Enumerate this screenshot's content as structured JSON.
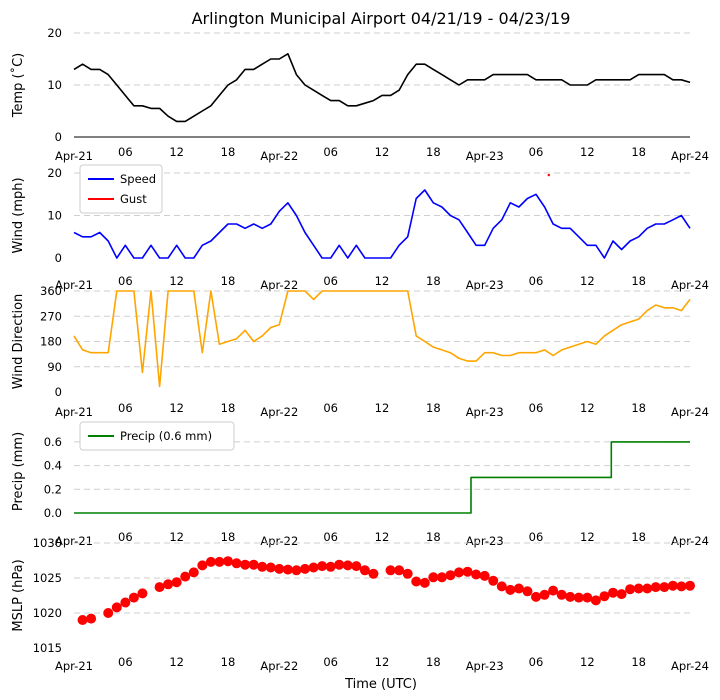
{
  "chart_data": {
    "title": "Arlington Municipal Airport 04/21/19 - 04/23/19",
    "xlabel": "Time (UTC)",
    "x_tick_labels": [
      "Apr-21",
      "06",
      "12",
      "18",
      "Apr-22",
      "06",
      "12",
      "18",
      "Apr-23",
      "06",
      "12",
      "18",
      "Apr-24"
    ],
    "x_range_hours": [
      0,
      72
    ],
    "panels": [
      {
        "id": "temp",
        "type": "line",
        "ylabel": "Temp (˚C)",
        "ylim": [
          0,
          20
        ],
        "yticks": [
          "0",
          "10",
          "20"
        ],
        "grid": true,
        "series": [
          {
            "color": "#000000",
            "x": [
              0,
              1,
              2,
              3,
              4,
              5,
              6,
              7,
              8,
              9,
              10,
              11,
              12,
              13,
              14,
              15,
              16,
              17,
              18,
              19,
              20,
              21,
              22,
              23,
              24,
              25,
              26,
              27,
              28,
              29,
              30,
              31,
              32,
              33,
              34,
              35,
              36,
              37,
              38,
              39,
              40,
              41,
              42,
              43,
              44,
              45,
              46,
              47,
              48,
              49,
              50,
              51,
              52,
              53,
              54,
              55,
              56,
              57,
              58,
              59,
              60,
              61,
              62,
              63,
              64,
              65,
              66,
              67,
              68,
              69,
              70,
              71,
              72
            ],
            "values": [
              13,
              14,
              13,
              13,
              12,
              10,
              8,
              6,
              6,
              5.5,
              5.5,
              4,
              3,
              3,
              4,
              5,
              6,
              8,
              10,
              11,
              13,
              13,
              14,
              15,
              15,
              16,
              12,
              10,
              9,
              8,
              7,
              7,
              6,
              6,
              6.5,
              7,
              8,
              8,
              9,
              12,
              14,
              14,
              13,
              12,
              11,
              10,
              11,
              11,
              11,
              12,
              12,
              12,
              12,
              12,
              11,
              11,
              11,
              11,
              10,
              10,
              10,
              11,
              11,
              11,
              11,
              11,
              12,
              12,
              12,
              12,
              11,
              11,
              10.5
            ]
          }
        ]
      },
      {
        "id": "wind",
        "type": "line",
        "ylabel": "Wind (mph)",
        "ylim": [
          0,
          20
        ],
        "yticks": [
          "0",
          "10",
          "20"
        ],
        "grid": true,
        "legend": {
          "position": "top-left",
          "entries": [
            "Speed",
            "Gust"
          ]
        },
        "series": [
          {
            "name": "Speed",
            "color": "#0000ff",
            "x": [
              0,
              1,
              2,
              3,
              4,
              5,
              6,
              7,
              8,
              9,
              10,
              11,
              12,
              13,
              14,
              15,
              16,
              17,
              18,
              19,
              20,
              21,
              22,
              23,
              24,
              25,
              26,
              27,
              28,
              29,
              30,
              31,
              32,
              33,
              34,
              35,
              36,
              37,
              38,
              39,
              40,
              41,
              42,
              43,
              44,
              45,
              46,
              47,
              48,
              49,
              50,
              51,
              52,
              53,
              54,
              55,
              56,
              57,
              58,
              59,
              60,
              61,
              62,
              63,
              64,
              65,
              66,
              67,
              68,
              69,
              70,
              71,
              72
            ],
            "values": [
              6,
              5,
              5,
              6,
              4,
              0,
              3,
              0,
              0,
              3,
              0,
              0,
              3,
              0,
              0,
              3,
              4,
              6,
              8,
              8,
              7,
              8,
              7,
              8,
              11,
              13,
              10,
              6,
              3,
              0,
              0,
              3,
              0,
              3,
              0,
              0,
              0,
              0,
              3,
              5,
              14,
              16,
              13,
              12,
              10,
              9,
              6,
              3,
              3,
              7,
              9,
              13,
              12,
              14,
              15,
              12,
              8,
              7,
              7,
              5,
              3,
              3,
              0,
              4,
              2,
              4,
              5,
              7,
              8,
              8,
              9,
              10,
              7
            ]
          },
          {
            "name": "Gust",
            "color": "#ff0000",
            "x": [
              55.5
            ],
            "values": [
              19.5
            ]
          }
        ]
      },
      {
        "id": "wdir",
        "type": "line",
        "ylabel": "Wind Direction",
        "ylim": [
          0,
          360
        ],
        "yticks": [
          "0",
          "90",
          "180",
          "270",
          "360"
        ],
        "grid": true,
        "series": [
          {
            "color": "#ffa500",
            "x": [
              0,
              1,
              2,
              3,
              4,
              5,
              6,
              7,
              8,
              9,
              10,
              11,
              12,
              13,
              14,
              15,
              16,
              17,
              18,
              19,
              20,
              21,
              22,
              23,
              24,
              25,
              26,
              27,
              28,
              29,
              30,
              31,
              32,
              33,
              34,
              35,
              36,
              37,
              38,
              39,
              40,
              41,
              42,
              43,
              44,
              45,
              46,
              47,
              48,
              49,
              50,
              51,
              52,
              53,
              54,
              55,
              56,
              57,
              58,
              59,
              60,
              61,
              62,
              63,
              64,
              65,
              66,
              67,
              68,
              69,
              70,
              71,
              72
            ],
            "values": [
              200,
              150,
              140,
              140,
              140,
              360,
              360,
              360,
              70,
              360,
              20,
              360,
              360,
              360,
              360,
              140,
              360,
              170,
              180,
              190,
              220,
              180,
              200,
              230,
              240,
              360,
              360,
              360,
              330,
              360,
              360,
              360,
              360,
              360,
              360,
              360,
              360,
              360,
              360,
              360,
              200,
              180,
              160,
              150,
              140,
              120,
              110,
              110,
              140,
              140,
              130,
              130,
              140,
              140,
              140,
              150,
              130,
              150,
              160,
              170,
              180,
              170,
              200,
              220,
              240,
              250,
              260,
              290,
              310,
              300,
              300,
              290,
              330
            ]
          }
        ]
      },
      {
        "id": "precip",
        "type": "line",
        "ylabel": "Precip (mm)",
        "ylim": [
          0,
          0.7
        ],
        "yticks": [
          "0.0",
          "0.2",
          "0.4",
          "0.6"
        ],
        "grid": true,
        "legend": {
          "position": "top-left",
          "entries": [
            "Precip (0.6 mm)"
          ]
        },
        "series": [
          {
            "name": "Precip (0.6 mm)",
            "color": "#008000",
            "x": [
              0,
              46.4,
              46.4,
              62.8,
              62.8,
              72
            ],
            "values": [
              0,
              0,
              0.3,
              0.3,
              0.6,
              0.6
            ]
          }
        ]
      },
      {
        "id": "mslp",
        "type": "scatter",
        "ylabel": "MSLP (hPa)",
        "ylim": [
          1015,
          1030
        ],
        "yticks": [
          "1015",
          "1020",
          "1025",
          "1030"
        ],
        "grid": true,
        "series": [
          {
            "color": "#ff0000",
            "x": [
              1,
              2,
              4,
              5,
              6,
              7,
              8,
              10,
              11,
              12,
              13,
              14,
              15,
              16,
              17,
              18,
              19,
              20,
              21,
              22,
              23,
              24,
              25,
              26,
              27,
              28,
              29,
              30,
              31,
              32,
              33,
              34,
              35,
              37,
              38,
              39,
              40,
              41,
              42,
              43,
              44,
              45,
              46,
              47,
              48,
              49,
              50,
              51,
              52,
              53,
              54,
              55,
              56,
              57,
              58,
              59,
              60,
              61,
              62,
              63,
              64,
              65,
              66,
              67,
              68,
              69,
              70,
              71,
              72
            ],
            "values": [
              1019,
              1019.2,
              1020,
              1020.8,
              1021.5,
              1022.2,
              1022.8,
              1023.7,
              1024.1,
              1024.4,
              1025.2,
              1025.8,
              1026.8,
              1027.3,
              1027.3,
              1027.4,
              1027.1,
              1026.9,
              1026.9,
              1026.6,
              1026.5,
              1026.3,
              1026.2,
              1026.1,
              1026.3,
              1026.5,
              1026.7,
              1026.6,
              1026.9,
              1026.8,
              1026.7,
              1026.1,
              1025.6,
              1026.1,
              1026.1,
              1025.6,
              1024.5,
              1024.3,
              1025.1,
              1025.1,
              1025.4,
              1025.8,
              1025.9,
              1025.5,
              1025.3,
              1024.6,
              1023.8,
              1023.3,
              1023.5,
              1023.1,
              1022.3,
              1022.6,
              1023.2,
              1022.6,
              1022.3,
              1022.2,
              1022.2,
              1021.8,
              1022.4,
              1022.9,
              1022.7,
              1023.4,
              1023.5,
              1023.5,
              1023.7,
              1023.7,
              1023.9,
              1023.8,
              1023.9
            ]
          }
        ]
      }
    ]
  }
}
